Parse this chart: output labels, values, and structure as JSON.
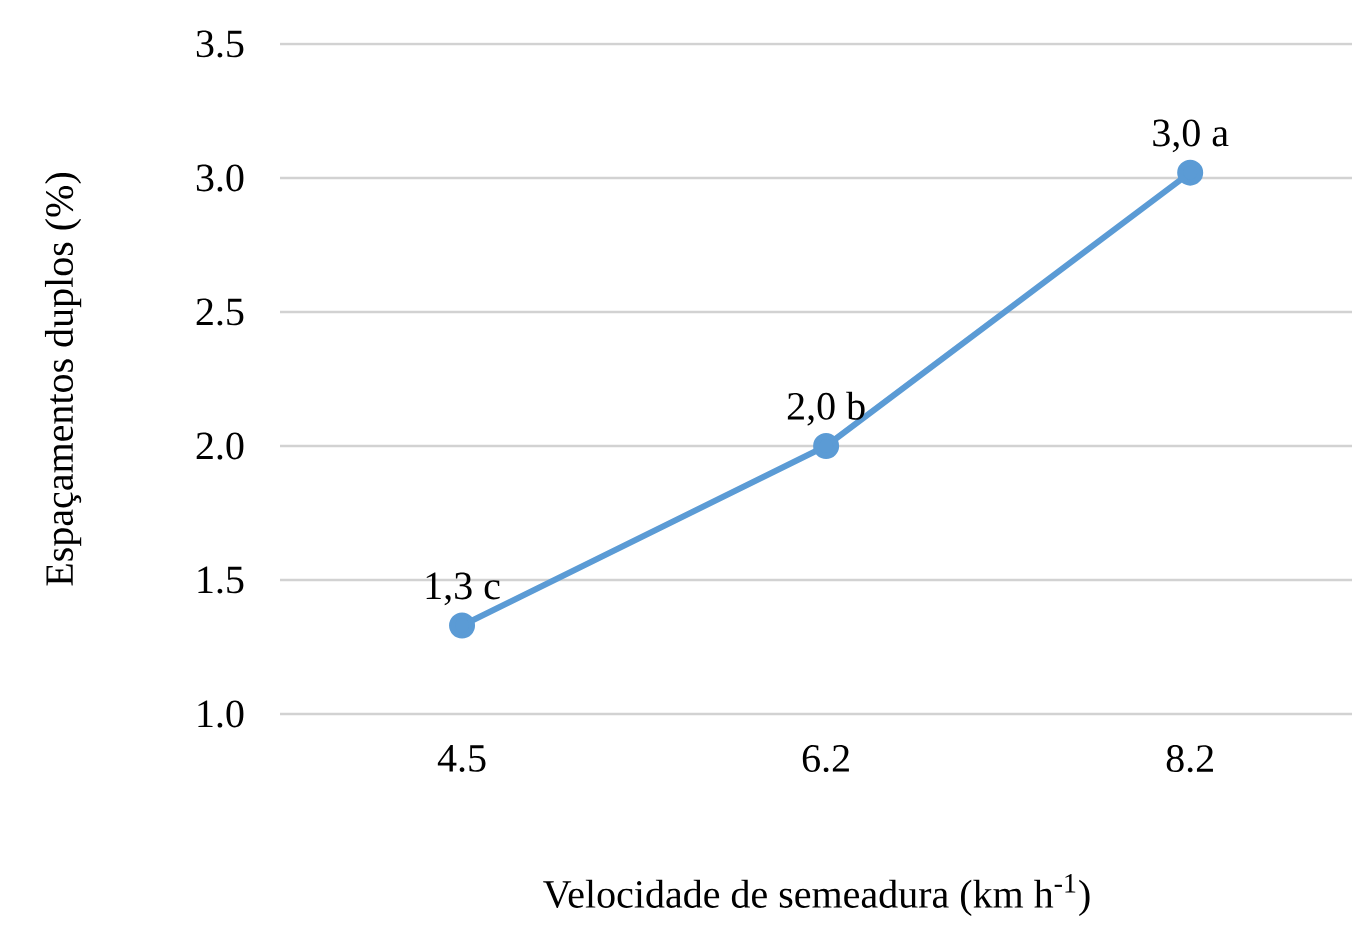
{
  "chart_data": {
    "type": "line",
    "xlabel": "Velocidade de semeadura (km h$^{-1}$)",
    "ylabel": "Espaçamentos duplos (%)",
    "categories": [
      "4.5",
      "6.2",
      "8.2"
    ],
    "values": [
      1.33,
      2.0,
      3.02
    ],
    "value_labels": [
      "1,3 c",
      "2,0 b",
      "3,0 a"
    ],
    "color": "#5b9bd5",
    "marker": "circle",
    "line_style": "solid",
    "ylim": [
      1.0,
      3.5
    ],
    "yticks": [
      {
        "value": 1.0,
        "label": "1.0"
      },
      {
        "value": 1.5,
        "label": "1.5"
      },
      {
        "value": 2.0,
        "label": "2.0"
      },
      {
        "value": 2.5,
        "label": "2.5"
      },
      {
        "value": 3.0,
        "label": "3.0"
      },
      {
        "value": 3.5,
        "label": "3.5"
      }
    ],
    "grid": "y"
  }
}
